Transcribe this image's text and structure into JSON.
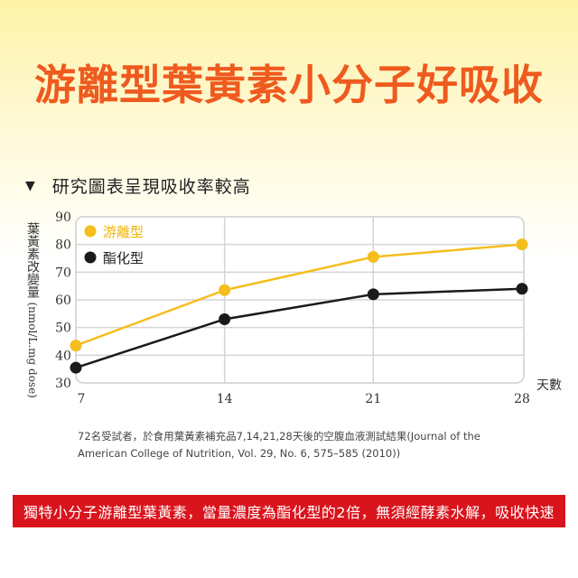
{
  "headline": "游離型葉黃素小分子好吸收",
  "section_title": "研究圖表呈現吸收率較高",
  "chart_data": {
    "type": "line",
    "x": [
      7,
      14,
      21,
      28
    ],
    "xlabel": "天數",
    "ylabel": "葉黃素改變量",
    "ylabel_unit": "(nmol/L.mg dose)",
    "ylim": [
      30,
      90
    ],
    "yticks": [
      30,
      40,
      50,
      60,
      70,
      80,
      90
    ],
    "grid": true,
    "legend_position": "top-left",
    "series": [
      {
        "name": "游離型",
        "color": "#f5be1d",
        "values": [
          43.5,
          63.5,
          75.5,
          80.0
        ]
      },
      {
        "name": "酯化型",
        "color": "#1a1a1a",
        "values": [
          35.5,
          53.0,
          62.0,
          64.0
        ]
      }
    ]
  },
  "footnote": "72名受試者，於食用葉黃素補充品7,14,21,28天後的空腹血液測試結果(Journal of the American College of Nutrition, Vol. 29, No. 6, 575–585 (2010))",
  "banner": "獨特小分子游離型葉黃素，當量濃度為酯化型的2倍，無須經酵素水解，吸收快速"
}
